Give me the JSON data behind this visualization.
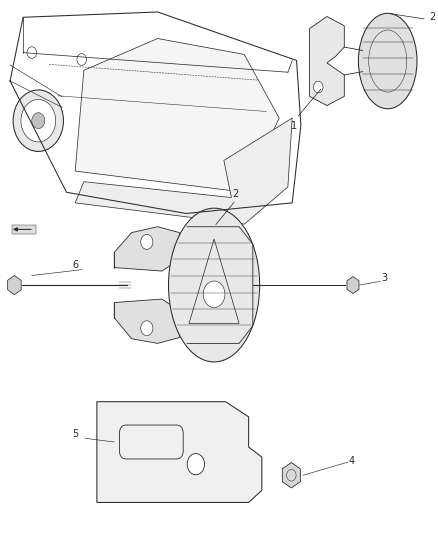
{
  "bg_color": "#ffffff",
  "line_color": "#2a2a2a",
  "lw": 0.75,
  "fig_width": 4.38,
  "fig_height": 5.33,
  "dpi": 100,
  "label_fontsize": 7
}
